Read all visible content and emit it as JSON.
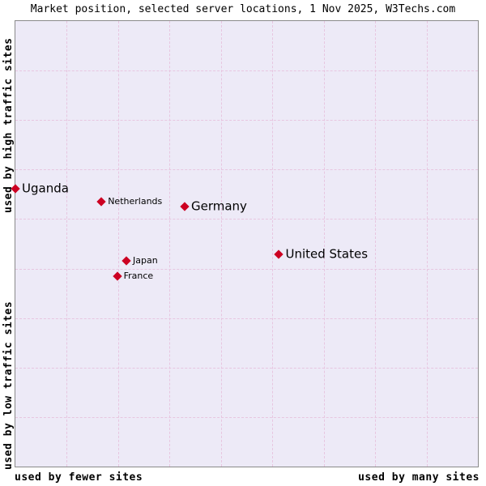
{
  "colors": {
    "plot_background": "#edeaf7",
    "grid": "#e7c6e0",
    "marker": "#cc0022",
    "border": "#8a8a8a"
  },
  "chart_data": {
    "type": "scatter",
    "title": "Market position, selected server locations, 1 Nov 2025, W3Techs.com",
    "x_axis": {
      "left_label": "used by fewer sites",
      "right_label": "used by many sites"
    },
    "y_axis": {
      "top_label": "used by high traffic sites",
      "bottom_label": "used by low traffic sites"
    },
    "grid": {
      "cols": 9,
      "rows": 9,
      "style": "dashed"
    },
    "legend": "none",
    "points": [
      {
        "label": "Uganda",
        "x_pct": 0,
        "y_pct": 37.6,
        "size": "large"
      },
      {
        "label": "Netherlands",
        "x_pct": 18.6,
        "y_pct": 40.5,
        "size": "small"
      },
      {
        "label": "Germany",
        "x_pct": 36.6,
        "y_pct": 41.6,
        "size": "large"
      },
      {
        "label": "United States",
        "x_pct": 57.0,
        "y_pct": 52.3,
        "size": "large"
      },
      {
        "label": "Japan",
        "x_pct": 24.0,
        "y_pct": 53.9,
        "size": "small"
      },
      {
        "label": "France",
        "x_pct": 22.0,
        "y_pct": 57.3,
        "size": "small"
      }
    ]
  }
}
